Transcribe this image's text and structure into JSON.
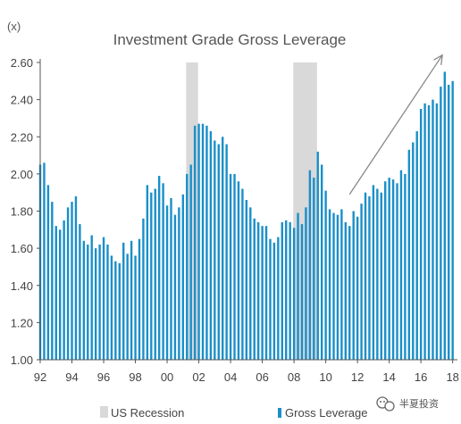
{
  "chart_data": {
    "type": "bar",
    "title": "Investment Grade Gross Leverage",
    "unit_label": "(x)",
    "ylim": [
      1.0,
      2.6
    ],
    "xlim": [
      1992,
      2018.3
    ],
    "y_ticks": [
      "1.00",
      "1.20",
      "1.40",
      "1.60",
      "1.80",
      "2.00",
      "2.20",
      "2.40",
      "2.60"
    ],
    "x_ticks": [
      "92",
      "94",
      "96",
      "98",
      "00",
      "02",
      "04",
      "06",
      "08",
      "10",
      "12",
      "14",
      "16",
      "18"
    ],
    "series": [
      {
        "name": "Gross Leverage",
        "color": "#1a8fc9",
        "x": [
          1992.0,
          1992.25,
          1992.5,
          1992.75,
          1993.0,
          1993.25,
          1993.5,
          1993.75,
          1994.0,
          1994.25,
          1994.5,
          1994.75,
          1995.0,
          1995.25,
          1995.5,
          1995.75,
          1996.0,
          1996.25,
          1996.5,
          1996.75,
          1997.0,
          1997.25,
          1997.5,
          1997.75,
          1998.0,
          1998.25,
          1998.5,
          1998.75,
          1999.0,
          1999.25,
          1999.5,
          1999.75,
          2000.0,
          2000.25,
          2000.5,
          2000.75,
          2001.0,
          2001.25,
          2001.5,
          2001.75,
          2002.0,
          2002.25,
          2002.5,
          2002.75,
          2003.0,
          2003.25,
          2003.5,
          2003.75,
          2004.0,
          2004.25,
          2004.5,
          2004.75,
          2005.0,
          2005.25,
          2005.5,
          2005.75,
          2006.0,
          2006.25,
          2006.5,
          2006.75,
          2007.0,
          2007.25,
          2007.5,
          2007.75,
          2008.0,
          2008.25,
          2008.5,
          2008.75,
          2009.0,
          2009.25,
          2009.5,
          2009.75,
          2010.0,
          2010.25,
          2010.5,
          2010.75,
          2011.0,
          2011.25,
          2011.5,
          2011.75,
          2012.0,
          2012.25,
          2012.5,
          2012.75,
          2013.0,
          2013.25,
          2013.5,
          2013.75,
          2014.0,
          2014.25,
          2014.5,
          2014.75,
          2015.0,
          2015.25,
          2015.5,
          2015.75,
          2016.0,
          2016.25,
          2016.5,
          2016.75,
          2017.0,
          2017.25,
          2017.5,
          2017.75,
          2018.0
        ],
        "values": [
          2.05,
          2.06,
          1.94,
          1.85,
          1.72,
          1.7,
          1.75,
          1.82,
          1.85,
          1.88,
          1.73,
          1.64,
          1.62,
          1.67,
          1.6,
          1.62,
          1.66,
          1.62,
          1.56,
          1.53,
          1.52,
          1.63,
          1.57,
          1.64,
          1.56,
          1.65,
          1.76,
          1.94,
          1.9,
          1.92,
          1.99,
          1.95,
          1.83,
          1.87,
          1.78,
          1.82,
          1.89,
          2.0,
          2.05,
          2.26,
          2.27,
          2.27,
          2.26,
          2.23,
          2.18,
          2.16,
          2.2,
          2.16,
          2.0,
          2.0,
          1.96,
          1.92,
          1.86,
          1.82,
          1.76,
          1.74,
          1.72,
          1.72,
          1.65,
          1.63,
          1.66,
          1.74,
          1.75,
          1.74,
          1.71,
          1.79,
          1.73,
          1.82,
          2.02,
          1.98,
          2.12,
          2.05,
          1.91,
          1.81,
          1.79,
          1.78,
          1.81,
          1.74,
          1.72,
          1.8,
          1.77,
          1.84,
          1.9,
          1.88,
          1.94,
          1.92,
          1.9,
          1.96,
          1.98,
          1.97,
          1.95,
          2.02,
          2.0,
          2.13,
          2.17,
          2.23,
          2.35,
          2.38,
          2.37,
          2.4,
          2.38,
          2.47,
          2.55,
          2.48,
          2.5
        ]
      }
    ],
    "recessions": [
      {
        "start": 2001.2,
        "end": 2001.95
      },
      {
        "start": 2007.95,
        "end": 2009.45
      }
    ],
    "trend_arrow": {
      "x0": 2011.5,
      "y0": 1.89,
      "x1": 2017.35,
      "y1": 2.64,
      "color": "#888888"
    },
    "legend": [
      {
        "label": "US Recession",
        "color": "#d9d9d9"
      },
      {
        "label": "Gross Leverage",
        "color": "#1a8fc9"
      }
    ],
    "legend_position": "bottom",
    "grid": false
  },
  "watermark": {
    "text": "半夏投资"
  }
}
